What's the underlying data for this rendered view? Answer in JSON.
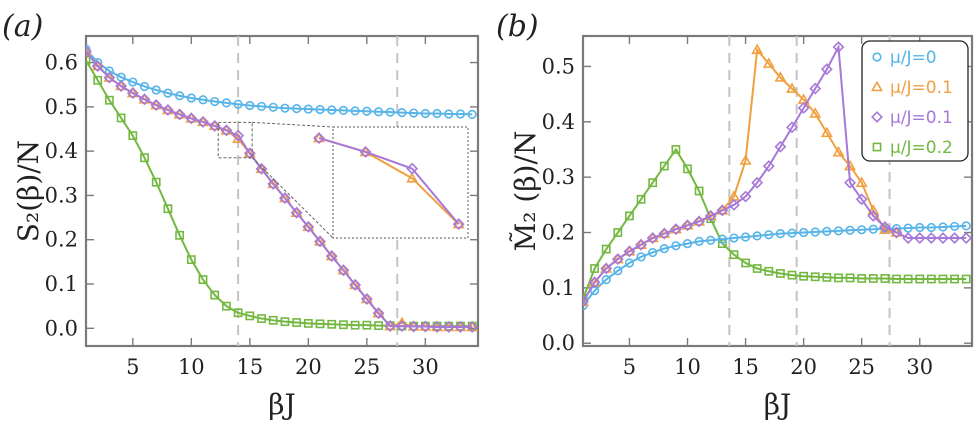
{
  "chart_data": [
    {
      "type": "line",
      "panel_label": "(a)",
      "xlabel": "βJ",
      "ylabel": "S₂(β)/N",
      "xlim": [
        1,
        34.5
      ],
      "ylim": [
        -0.04,
        0.66
      ],
      "xticks": [
        5,
        10,
        15,
        20,
        25,
        30
      ],
      "xtick_labels": [
        "5",
        "10",
        "15",
        "20",
        "25",
        "30"
      ],
      "yticks": [
        0.0,
        0.1,
        0.2,
        0.3,
        0.4,
        0.5,
        0.6
      ],
      "ytick_labels": [
        "0.0",
        "0.1",
        "0.2",
        "0.3",
        "0.4",
        "0.5",
        "0.6"
      ],
      "vlines": [
        14,
        27.6
      ],
      "inset": "zoom of region βJ ≈ 12–15, S₂/N ≈ 0.38–0.46",
      "series": [
        {
          "name": "μ/J=0",
          "color": "#56b4e9",
          "marker": "circle",
          "x": [
            1,
            2,
            3,
            4,
            5,
            6,
            7,
            8,
            9,
            10,
            11,
            12,
            13,
            14,
            15,
            16,
            17,
            18,
            19,
            20,
            21,
            22,
            23,
            24,
            25,
            26,
            27,
            28,
            29,
            30,
            31,
            32,
            33,
            34
          ],
          "values": [
            0.63,
            0.6,
            0.581,
            0.567,
            0.556,
            0.546,
            0.538,
            0.531,
            0.525,
            0.52,
            0.516,
            0.512,
            0.509,
            0.506,
            0.503,
            0.501,
            0.499,
            0.497,
            0.496,
            0.495,
            0.494,
            0.493,
            0.492,
            0.491,
            0.49,
            0.489,
            0.488,
            0.487,
            0.486,
            0.485,
            0.485,
            0.484,
            0.484,
            0.483
          ]
        },
        {
          "name": "μ/J=0.1",
          "color": "#f0a040",
          "marker": "triangle",
          "x": [
            1,
            2,
            3,
            4,
            5,
            6,
            7,
            8,
            9,
            10,
            11,
            12,
            13,
            14,
            15,
            16,
            17,
            18,
            19,
            20,
            21,
            22,
            23,
            24,
            25,
            26,
            27,
            28,
            29,
            30,
            31,
            32,
            33,
            34
          ],
          "values": [
            0.625,
            0.592,
            0.566,
            0.547,
            0.531,
            0.517,
            0.504,
            0.493,
            0.483,
            0.474,
            0.466,
            0.457,
            0.447,
            0.428,
            0.395,
            0.36,
            0.326,
            0.294,
            0.261,
            0.229,
            0.196,
            0.163,
            0.131,
            0.098,
            0.066,
            0.034,
            0.005,
            0.012,
            0.004,
            0.004,
            0.003,
            0.003,
            0.003,
            0.003
          ]
        },
        {
          "name": "μ/J=0.1",
          "color": "#a678d8",
          "marker": "diamond",
          "x": [
            1,
            2,
            3,
            4,
            5,
            6,
            7,
            8,
            9,
            10,
            11,
            12,
            13,
            14,
            15,
            16,
            17,
            18,
            19,
            20,
            21,
            22,
            23,
            24,
            25,
            26,
            27,
            28,
            29,
            30,
            31,
            32,
            33,
            34
          ],
          "values": [
            0.625,
            0.592,
            0.566,
            0.547,
            0.531,
            0.517,
            0.504,
            0.493,
            0.483,
            0.474,
            0.466,
            0.457,
            0.447,
            0.435,
            0.395,
            0.36,
            0.326,
            0.294,
            0.261,
            0.229,
            0.196,
            0.163,
            0.131,
            0.098,
            0.066,
            0.034,
            0.005,
            0.005,
            0.004,
            0.004,
            0.003,
            0.003,
            0.003,
            0.003
          ]
        },
        {
          "name": "μ/J=0.2",
          "color": "#73b840",
          "marker": "square",
          "x": [
            1,
            2,
            3,
            4,
            5,
            6,
            7,
            8,
            9,
            10,
            11,
            12,
            13,
            14,
            15,
            16,
            17,
            18,
            19,
            20,
            21,
            22,
            23,
            24,
            25,
            26,
            27,
            28,
            29,
            30,
            31,
            32,
            33,
            34
          ],
          "values": [
            0.605,
            0.56,
            0.515,
            0.475,
            0.435,
            0.385,
            0.33,
            0.27,
            0.21,
            0.155,
            0.11,
            0.075,
            0.05,
            0.035,
            0.028,
            0.022,
            0.018,
            0.015,
            0.013,
            0.011,
            0.01,
            0.009,
            0.008,
            0.007,
            0.007,
            0.006,
            0.006,
            0.005,
            0.005,
            0.005,
            0.005,
            0.005,
            0.005,
            0.005
          ]
        }
      ]
    },
    {
      "type": "line",
      "panel_label": "(b)",
      "xlabel": "βJ",
      "ylabel": "M̃₂ (β)/N",
      "xlim": [
        1,
        34.5
      ],
      "ylim": [
        -0.005,
        0.555
      ],
      "xticks": [
        5,
        10,
        15,
        20,
        25,
        30
      ],
      "xtick_labels": [
        "5",
        "10",
        "15",
        "20",
        "25",
        "30"
      ],
      "yticks": [
        0.0,
        0.1,
        0.2,
        0.3,
        0.4,
        0.5
      ],
      "ytick_labels": [
        "0.0",
        "0.1",
        "0.2",
        "0.3",
        "0.4",
        "0.5"
      ],
      "vlines": [
        13.6,
        19.4,
        27.4
      ],
      "legend": [
        "μ/J=0",
        "μ/J=0.1",
        "μ/J=0.1",
        "μ/J=0.2"
      ],
      "series": [
        {
          "name": "μ/J=0",
          "color": "#56b4e9",
          "marker": "circle",
          "x": [
            1,
            2,
            3,
            4,
            5,
            6,
            7,
            8,
            9,
            10,
            11,
            12,
            13,
            14,
            15,
            16,
            17,
            18,
            19,
            20,
            21,
            22,
            23,
            24,
            25,
            26,
            27,
            28,
            29,
            30,
            31,
            32,
            33,
            34
          ],
          "values": [
            0.068,
            0.095,
            0.115,
            0.131,
            0.145,
            0.156,
            0.164,
            0.171,
            0.176,
            0.18,
            0.184,
            0.186,
            0.188,
            0.19,
            0.192,
            0.194,
            0.196,
            0.198,
            0.199,
            0.2,
            0.201,
            0.202,
            0.203,
            0.204,
            0.205,
            0.206,
            0.207,
            0.207,
            0.208,
            0.209,
            0.209,
            0.21,
            0.211,
            0.212
          ]
        },
        {
          "name": "μ/J=0.1",
          "color": "#f0a040",
          "marker": "triangle",
          "x": [
            1,
            2,
            3,
            4,
            5,
            6,
            7,
            8,
            9,
            10,
            11,
            12,
            13,
            14,
            15,
            16,
            17,
            18,
            19,
            20,
            21,
            22,
            23,
            24,
            25,
            26,
            27,
            28
          ],
          "values": [
            0.075,
            0.11,
            0.135,
            0.152,
            0.166,
            0.178,
            0.19,
            0.198,
            0.206,
            0.213,
            0.22,
            0.23,
            0.24,
            0.265,
            0.33,
            0.53,
            0.505,
            0.48,
            0.46,
            0.44,
            0.415,
            0.38,
            0.345,
            0.32,
            0.29,
            0.24,
            0.205,
            0.2
          ]
        },
        {
          "name": "μ/J=0.1",
          "color": "#a678d8",
          "marker": "diamond",
          "x": [
            1,
            2,
            3,
            4,
            5,
            6,
            7,
            8,
            9,
            10,
            11,
            12,
            13,
            14,
            15,
            16,
            17,
            18,
            19,
            20,
            21,
            22,
            23,
            24,
            25,
            26,
            27,
            28,
            29,
            30,
            31,
            32,
            33,
            34
          ],
          "values": [
            0.075,
            0.11,
            0.135,
            0.152,
            0.166,
            0.178,
            0.19,
            0.198,
            0.206,
            0.213,
            0.22,
            0.23,
            0.24,
            0.25,
            0.265,
            0.29,
            0.32,
            0.355,
            0.39,
            0.425,
            0.46,
            0.495,
            0.535,
            0.29,
            0.26,
            0.23,
            0.21,
            0.2,
            0.19,
            0.19,
            0.19,
            0.19,
            0.19,
            0.19
          ]
        },
        {
          "name": "μ/J=0.2",
          "color": "#73b840",
          "marker": "square",
          "x": [
            1,
            2,
            3,
            4,
            5,
            6,
            7,
            8,
            9,
            10,
            11,
            12,
            13,
            14,
            15,
            16,
            17,
            18,
            19,
            20,
            21,
            22,
            23,
            24,
            25,
            26,
            27,
            28,
            29,
            30,
            31,
            32,
            33,
            34
          ],
          "values": [
            0.08,
            0.135,
            0.17,
            0.2,
            0.23,
            0.26,
            0.29,
            0.32,
            0.35,
            0.315,
            0.275,
            0.225,
            0.18,
            0.16,
            0.145,
            0.135,
            0.13,
            0.126,
            0.123,
            0.121,
            0.12,
            0.119,
            0.118,
            0.118,
            0.117,
            0.117,
            0.117,
            0.116,
            0.116,
            0.116,
            0.116,
            0.116,
            0.116,
            0.116
          ]
        }
      ]
    }
  ]
}
